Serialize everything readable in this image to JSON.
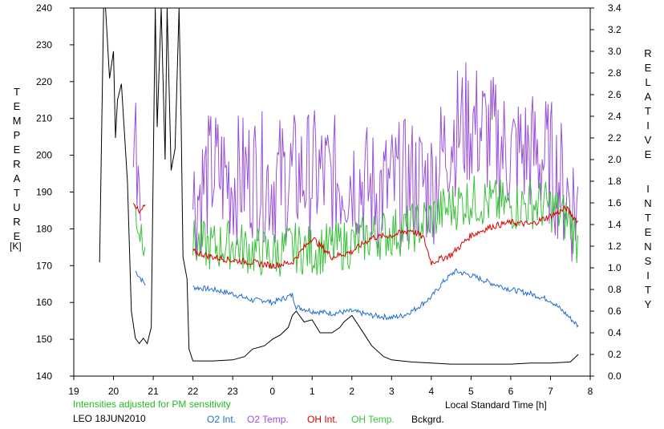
{
  "chart_data": {
    "type": "line",
    "title": "",
    "note": "Intensities adjusted for PM sensitivity",
    "site_label": "LEO 18JUN2010",
    "xlabel": "Local Standard Time [h]",
    "ylabel_left": "TEMPERATURE",
    "ylabel_left_unit": "[K]",
    "ylabel_right": "RELATIVE INTENSITY",
    "x_ticks": [
      "19",
      "20",
      "21",
      "22",
      "23",
      "0",
      "1",
      "2",
      "3",
      "4",
      "5",
      "6",
      "7",
      "8"
    ],
    "x_range": [
      19,
      32
    ],
    "y_left_range": [
      140,
      240
    ],
    "y_left_ticks": [
      140,
      150,
      160,
      170,
      180,
      190,
      200,
      210,
      220,
      230,
      240
    ],
    "y_right_range": [
      0.0,
      3.4
    ],
    "y_right_ticks": [
      "0.0",
      "0.2",
      "0.4",
      "0.6",
      "0.8",
      "1.0",
      "1.2",
      "1.4",
      "1.6",
      "1.8",
      "2.0",
      "2.2",
      "2.4",
      "2.6",
      "2.8",
      "3.0",
      "3.2",
      "3.4"
    ],
    "grid": false,
    "legend_position": "bottom",
    "colors": {
      "o2_int": "#1f6fd0",
      "o2_temp": "#9a4fd8",
      "oh_int": "#dd0000",
      "oh_temp": "#3ac23a",
      "bckgrd": "#000000",
      "note": "#22bb22"
    },
    "series": [
      {
        "name": "O2 Int.",
        "axis": "right",
        "color": "#1f6fd0",
        "x": [
          20.55,
          20.65,
          20.75,
          20.8,
          22.0,
          22.5,
          23.0,
          23.5,
          23.8,
          24.0,
          24.3,
          24.5,
          24.6,
          25.0,
          25.5,
          26.0,
          26.5,
          27.0,
          27.3,
          27.6,
          28.0,
          28.3,
          28.6,
          29.0,
          29.5,
          30.0,
          30.5,
          31.0,
          31.4,
          31.7
        ],
        "y": [
          0.97,
          0.92,
          0.87,
          0.85,
          0.82,
          0.8,
          0.76,
          0.7,
          0.7,
          0.68,
          0.72,
          0.75,
          0.64,
          0.6,
          0.58,
          0.6,
          0.56,
          0.54,
          0.56,
          0.62,
          0.73,
          0.87,
          0.97,
          0.93,
          0.86,
          0.8,
          0.76,
          0.7,
          0.57,
          0.46
        ]
      },
      {
        "name": "O2 Temp.",
        "axis": "left",
        "color": "#9a4fd8",
        "x": [
          20.5,
          20.6,
          20.7,
          22.0,
          22.5,
          23.0,
          23.5,
          24.0,
          24.5,
          25.0,
          25.5,
          26.0,
          26.5,
          27.0,
          27.5,
          28.0,
          28.5,
          29.0,
          29.5,
          30.0,
          30.5,
          31.0,
          31.5,
          31.7
        ],
        "y": [
          211,
          201,
          200,
          187,
          196,
          193,
          195,
          193,
          194,
          195,
          193,
          195,
          190,
          191,
          193,
          192,
          206,
          209,
          205,
          200,
          201,
          198,
          188,
          185
        ],
        "amplitude": 18
      },
      {
        "name": "OH Int.",
        "axis": "right",
        "color": "#dd0000",
        "x": [
          20.5,
          20.65,
          20.8,
          22.0,
          22.5,
          23.0,
          23.5,
          24.0,
          24.5,
          25.0,
          25.5,
          26.0,
          26.5,
          27.0,
          27.5,
          27.8,
          28.0,
          28.5,
          29.0,
          29.5,
          30.0,
          30.5,
          31.0,
          31.4,
          31.7
        ],
        "y": [
          1.62,
          1.5,
          1.58,
          1.15,
          1.1,
          1.07,
          1.05,
          1.02,
          1.05,
          1.28,
          1.1,
          1.15,
          1.28,
          1.3,
          1.35,
          1.28,
          1.05,
          1.12,
          1.3,
          1.38,
          1.42,
          1.4,
          1.48,
          1.55,
          1.42
        ]
      },
      {
        "name": "OH Temp.",
        "axis": "left",
        "color": "#3ac23a",
        "x": [
          20.55,
          20.65,
          20.8,
          22.0,
          22.5,
          23.0,
          23.5,
          24.0,
          24.5,
          25.0,
          25.5,
          26.0,
          26.5,
          27.0,
          27.5,
          28.0,
          28.5,
          29.0,
          29.5,
          30.0,
          30.5,
          31.0,
          31.5,
          31.7
        ],
        "y": [
          186,
          180,
          179,
          176,
          175,
          176,
          174,
          173,
          175,
          174,
          175,
          176,
          178,
          179,
          180,
          183,
          186,
          188,
          187,
          186,
          187,
          186,
          182,
          176
        ],
        "amplitude": 7
      },
      {
        "name": "Bckgrd.",
        "axis": "right",
        "color": "#000000",
        "x": [
          19.65,
          19.75,
          19.8,
          19.9,
          20.0,
          20.05,
          20.1,
          20.2,
          20.35,
          20.45,
          20.55,
          20.65,
          20.75,
          20.85,
          20.95,
          21.05,
          21.1,
          21.2,
          21.3,
          21.35,
          21.45,
          21.55,
          21.65,
          21.7,
          21.75,
          21.85,
          21.9,
          22.0,
          22.5,
          23.0,
          23.3,
          23.5,
          23.8,
          24.0,
          24.2,
          24.4,
          24.5,
          24.6,
          24.8,
          25.0,
          25.2,
          25.5,
          25.7,
          25.8,
          26.0,
          26.2,
          26.5,
          26.8,
          27.0,
          27.5,
          28.0,
          28.5,
          29.0,
          29.5,
          30.0,
          30.5,
          31.0,
          31.5,
          31.7
        ],
        "y": [
          1.05,
          3.4,
          3.4,
          2.75,
          3.0,
          2.2,
          2.55,
          2.7,
          1.8,
          0.6,
          0.35,
          0.3,
          0.35,
          0.3,
          0.45,
          3.4,
          2.3,
          3.4,
          2.0,
          3.4,
          1.9,
          2.1,
          3.4,
          2.4,
          1.1,
          0.9,
          0.25,
          0.14,
          0.14,
          0.15,
          0.18,
          0.25,
          0.28,
          0.34,
          0.38,
          0.45,
          0.56,
          0.6,
          0.5,
          0.52,
          0.4,
          0.4,
          0.45,
          0.5,
          0.56,
          0.45,
          0.28,
          0.18,
          0.15,
          0.13,
          0.12,
          0.11,
          0.11,
          0.11,
          0.11,
          0.12,
          0.12,
          0.13,
          0.2
        ]
      }
    ]
  }
}
